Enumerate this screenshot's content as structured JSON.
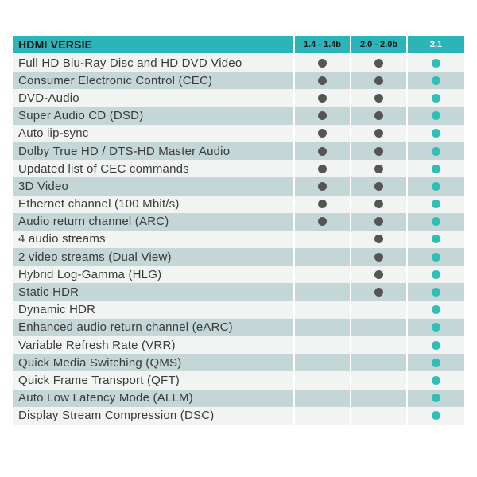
{
  "header": {
    "title": "HDMI VERSIE",
    "columns": [
      "1.4 - 1.4b",
      "2.0 - 2.0b",
      "2.1"
    ]
  },
  "colors": {
    "header_bg": "#2bb5b8",
    "dot_old": "#555555",
    "dot_new": "#2fbfb6"
  },
  "rows": [
    {
      "label": "Full HD Blu-Ray Disc and HD DVD Video",
      "v14": true,
      "v20": true,
      "v21": true
    },
    {
      "label": "Consumer Electronic Control (CEC)",
      "v14": true,
      "v20": true,
      "v21": true
    },
    {
      "label": "DVD-Audio",
      "v14": true,
      "v20": true,
      "v21": true
    },
    {
      "label": "Super Audio CD (DSD)",
      "v14": true,
      "v20": true,
      "v21": true
    },
    {
      "label": "Auto lip-sync",
      "v14": true,
      "v20": true,
      "v21": true
    },
    {
      "label": "Dolby True HD / DTS-HD Master Audio",
      "v14": true,
      "v20": true,
      "v21": true
    },
    {
      "label": "Updated list of CEC commands",
      "v14": true,
      "v20": true,
      "v21": true
    },
    {
      "label": "3D Video",
      "v14": true,
      "v20": true,
      "v21": true
    },
    {
      "label": "Ethernet channel (100 Mbit/s)",
      "v14": true,
      "v20": true,
      "v21": true
    },
    {
      "label": "Audio return channel (ARC)",
      "v14": true,
      "v20": true,
      "v21": true
    },
    {
      "label": " 4 audio streams",
      "v14": false,
      "v20": true,
      "v21": true
    },
    {
      "label": "2 video streams (Dual View)",
      "v14": false,
      "v20": true,
      "v21": true
    },
    {
      "label": "Hybrid Log-Gamma (HLG)",
      "v14": false,
      "v20": true,
      "v21": true
    },
    {
      "label": "Static HDR",
      "v14": false,
      "v20": true,
      "v21": true
    },
    {
      "label": "Dynamic HDR",
      "v14": false,
      "v20": false,
      "v21": true
    },
    {
      "label": "Enhanced audio return channel (eARC)",
      "v14": false,
      "v20": false,
      "v21": true
    },
    {
      "label": "Variable Refresh Rate (VRR)",
      "v14": false,
      "v20": false,
      "v21": true
    },
    {
      "label": "Quick Media Switching (QMS)",
      "v14": false,
      "v20": false,
      "v21": true
    },
    {
      "label": "Quick Frame Transport (QFT)",
      "v14": false,
      "v20": false,
      "v21": true
    },
    {
      "label": "Auto Low Latency Mode (ALLM)",
      "v14": false,
      "v20": false,
      "v21": true
    },
    {
      "label": "Display Stream Compression (DSC)",
      "v14": false,
      "v20": false,
      "v21": true
    }
  ]
}
